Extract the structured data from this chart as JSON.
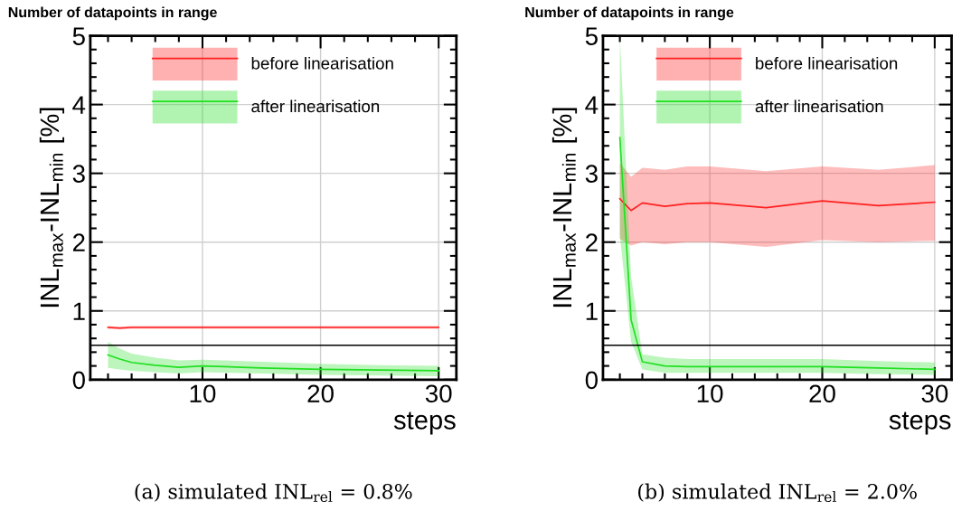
{
  "chart_data": [
    {
      "type": "line",
      "title": "Number of datapoints in range",
      "xlabel": "steps",
      "ylabel": "INL$_{max}$-INL$_{min}$ [%]",
      "xlim": [
        0.5,
        31.5
      ],
      "ylim": [
        0,
        5
      ],
      "xticks": [
        {
          "value": 2,
          "label": null
        },
        {
          "value": 4,
          "label": null
        },
        {
          "value": 6,
          "label": null
        },
        {
          "value": 8,
          "label": null
        },
        10,
        {
          "value": 12,
          "label": null
        },
        {
          "value": 14,
          "label": null
        },
        {
          "value": 16,
          "label": null
        },
        {
          "value": 18,
          "label": null
        },
        20,
        {
          "value": 22,
          "label": null
        },
        {
          "value": 24,
          "label": null
        },
        {
          "value": 26,
          "label": null
        },
        {
          "value": 28,
          "label": null
        },
        30
      ],
      "yticks": [
        0,
        {
          "value": 0.2,
          "label": null
        },
        {
          "value": 0.4,
          "label": null
        },
        {
          "value": 0.6,
          "label": null
        },
        {
          "value": 0.8,
          "label": null
        },
        1,
        {
          "value": 1.2,
          "label": null
        },
        {
          "value": 1.4,
          "label": null
        },
        {
          "value": 1.6,
          "label": null
        },
        {
          "value": 1.8,
          "label": null
        },
        2,
        {
          "value": 2.2,
          "label": null
        },
        {
          "value": 2.4,
          "label": null
        },
        {
          "value": 2.6,
          "label": null
        },
        {
          "value": 2.8,
          "label": null
        },
        3,
        {
          "value": 3.2,
          "label": null
        },
        {
          "value": 3.4,
          "label": null
        },
        {
          "value": 3.6,
          "label": null
        },
        {
          "value": 3.8,
          "label": null
        },
        4,
        {
          "value": 4.2,
          "label": null
        },
        {
          "value": 4.4,
          "label": null
        },
        {
          "value": 4.6,
          "label": null
        },
        {
          "value": 4.8,
          "label": null
        },
        5
      ],
      "grid": true,
      "legend": "top",
      "x": [
        2,
        3,
        4,
        6,
        8,
        10,
        15,
        20,
        25,
        30
      ],
      "series": [
        {
          "name": "before linearisation",
          "color": "#ff2020",
          "values": [
            0.76,
            0.75,
            0.76,
            0.76,
            0.76,
            0.76,
            0.76,
            0.76,
            0.76,
            0.76
          ],
          "lower": [
            0.74,
            0.73,
            0.74,
            0.74,
            0.74,
            0.74,
            0.74,
            0.74,
            0.74,
            0.74
          ],
          "upper": [
            0.78,
            0.77,
            0.78,
            0.78,
            0.78,
            0.78,
            0.78,
            0.78,
            0.78,
            0.78
          ]
        },
        {
          "name": "after linearisation",
          "color": "#20e020",
          "values": [
            0.36,
            0.3,
            0.25,
            0.21,
            0.18,
            0.2,
            0.17,
            0.15,
            0.14,
            0.13
          ],
          "lower": [
            0.17,
            0.15,
            0.13,
            0.11,
            0.09,
            0.11,
            0.09,
            0.07,
            0.06,
            0.05
          ],
          "upper": [
            0.55,
            0.45,
            0.38,
            0.32,
            0.28,
            0.29,
            0.26,
            0.23,
            0.21,
            0.2
          ]
        }
      ],
      "ref_lines": [
        {
          "axis": "y",
          "value": 0.5,
          "color": "#000000"
        }
      ],
      "annotations": [
        "(a) simulated INL$_{rel}$ = 0.8%"
      ]
    },
    {
      "type": "line",
      "title": "Number of datapoints in range",
      "xlabel": "steps",
      "ylabel": "INL$_{max}$-INL$_{min}$ [%]",
      "xlim": [
        0.5,
        31.5
      ],
      "ylim": [
        0,
        5
      ],
      "xticks": [
        {
          "value": 2,
          "label": null
        },
        {
          "value": 4,
          "label": null
        },
        {
          "value": 6,
          "label": null
        },
        {
          "value": 8,
          "label": null
        },
        10,
        {
          "value": 12,
          "label": null
        },
        {
          "value": 14,
          "label": null
        },
        {
          "value": 16,
          "label": null
        },
        {
          "value": 18,
          "label": null
        },
        20,
        {
          "value": 22,
          "label": null
        },
        {
          "value": 24,
          "label": null
        },
        {
          "value": 26,
          "label": null
        },
        {
          "value": 28,
          "label": null
        },
        30
      ],
      "yticks": [
        0,
        {
          "value": 0.2,
          "label": null
        },
        {
          "value": 0.4,
          "label": null
        },
        {
          "value": 0.6,
          "label": null
        },
        {
          "value": 0.8,
          "label": null
        },
        1,
        {
          "value": 1.2,
          "label": null
        },
        {
          "value": 1.4,
          "label": null
        },
        {
          "value": 1.6,
          "label": null
        },
        {
          "value": 1.8,
          "label": null
        },
        2,
        {
          "value": 2.2,
          "label": null
        },
        {
          "value": 2.4,
          "label": null
        },
        {
          "value": 2.6,
          "label": null
        },
        {
          "value": 2.8,
          "label": null
        },
        3,
        {
          "value": 3.2,
          "label": null
        },
        {
          "value": 3.4,
          "label": null
        },
        {
          "value": 3.6,
          "label": null
        },
        {
          "value": 3.8,
          "label": null
        },
        4,
        {
          "value": 4.2,
          "label": null
        },
        {
          "value": 4.4,
          "label": null
        },
        {
          "value": 4.6,
          "label": null
        },
        {
          "value": 4.8,
          "label": null
        },
        5
      ],
      "grid": true,
      "legend": "top",
      "x": [
        2,
        3,
        4,
        6,
        8,
        10,
        15,
        20,
        25,
        30
      ],
      "series": [
        {
          "name": "before linearisation",
          "color": "#ff2020",
          "values": [
            2.63,
            2.46,
            2.57,
            2.52,
            2.56,
            2.57,
            2.5,
            2.6,
            2.53,
            2.58
          ],
          "lower": [
            2.05,
            1.95,
            2.0,
            1.97,
            2.0,
            2.0,
            1.93,
            2.03,
            2.0,
            2.02
          ],
          "upper": [
            3.15,
            2.95,
            3.08,
            3.05,
            3.1,
            3.1,
            3.03,
            3.1,
            3.05,
            3.12
          ]
        },
        {
          "name": "after linearisation",
          "color": "#20e020",
          "values": [
            3.52,
            0.87,
            0.26,
            0.2,
            0.19,
            0.19,
            0.19,
            0.19,
            0.17,
            0.15
          ],
          "lower": [
            2.1,
            0.55,
            0.15,
            0.1,
            0.1,
            0.1,
            0.1,
            0.1,
            0.08,
            0.07
          ],
          "upper": [
            5.0,
            1.5,
            0.37,
            0.32,
            0.3,
            0.3,
            0.3,
            0.3,
            0.27,
            0.25
          ]
        }
      ],
      "ref_lines": [
        {
          "axis": "y",
          "value": 0.5,
          "color": "#000000"
        }
      ],
      "annotations": [
        "(b) simulated INL$_{rel}$ = 2.0%"
      ]
    }
  ]
}
